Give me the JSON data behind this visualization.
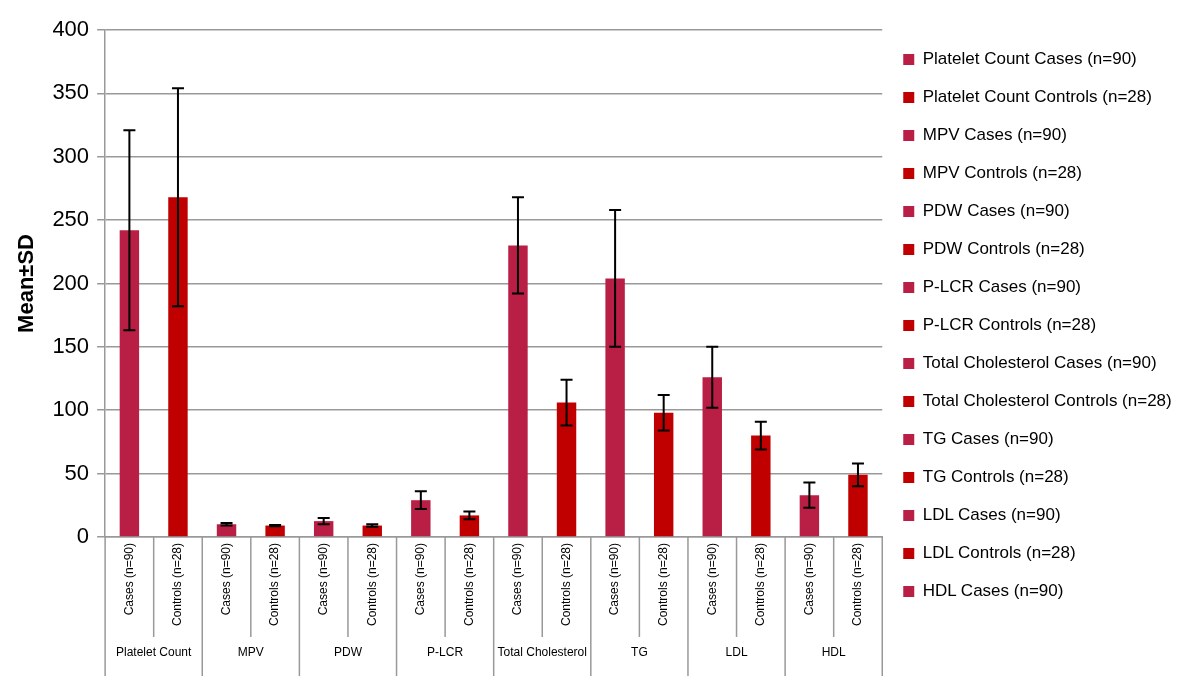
{
  "chart_data": {
    "type": "bar",
    "ylabel": "Mean±SD",
    "categories": [
      "Cases (n=90)",
      "Controls (n=28)",
      "Cases (n=90)",
      "Controls (n=28)",
      "Cases (n=90)",
      "Controls (n=28)",
      "Cases (n=90)",
      "Controls (n=28)",
      "Cases (n=90)",
      "Controls (n=28)",
      "Cases (n=90)",
      "Controls (n=28)",
      "Cases (n=90)",
      "Controls (n=28)",
      "Cases (n=90)",
      "Controls (n=28)"
    ],
    "annotations": [
      "Platelet Count",
      "MPV",
      "PDW",
      "P-LCR",
      "Total Cholesterol",
      "TG",
      "LDL",
      "HDL"
    ],
    "ylim": [
      0,
      400
    ],
    "yticks": [
      0,
      50,
      100,
      150,
      200,
      250,
      300,
      350,
      400
    ],
    "grid": "y",
    "legend": "right",
    "series": [
      {
        "name": "Platelet Count Cases (n=90)",
        "color": "#b91e45",
        "values": [
          242,
          null,
          null,
          null,
          null,
          null,
          null,
          null,
          null,
          null,
          null,
          null,
          null,
          null,
          null,
          null
        ],
        "errors": [
          79,
          null,
          null,
          null,
          null,
          null,
          null,
          null,
          null,
          null,
          null,
          null,
          null,
          null,
          null,
          null
        ]
      },
      {
        "name": "Platelet Count Controls (n=28)",
        "color": "#c00000",
        "values": [
          null,
          268,
          null,
          null,
          null,
          null,
          null,
          null,
          null,
          null,
          null,
          null,
          null,
          null,
          null,
          null
        ],
        "errors": [
          null,
          86,
          null,
          null,
          null,
          null,
          null,
          null,
          null,
          null,
          null,
          null,
          null,
          null,
          null,
          null
        ]
      },
      {
        "name": "MPV Cases (n=90)",
        "color": "#b91e45",
        "values": [
          null,
          null,
          10,
          null,
          null,
          null,
          null,
          null,
          null,
          null,
          null,
          null,
          null,
          null,
          null,
          null
        ],
        "errors": [
          null,
          null,
          1,
          null,
          null,
          null,
          null,
          null,
          null,
          null,
          null,
          null,
          null,
          null,
          null,
          null
        ]
      },
      {
        "name": "MPV Controls (n=28)",
        "color": "#c00000",
        "values": [
          null,
          null,
          null,
          9,
          null,
          null,
          null,
          null,
          null,
          null,
          null,
          null,
          null,
          null,
          null,
          null
        ],
        "errors": [
          null,
          null,
          null,
          0.5,
          null,
          null,
          null,
          null,
          null,
          null,
          null,
          null,
          null,
          null,
          null,
          null
        ]
      },
      {
        "name": "PDW Cases (n=90)",
        "color": "#b91e45",
        "values": [
          null,
          null,
          null,
          null,
          12.5,
          null,
          null,
          null,
          null,
          null,
          null,
          null,
          null,
          null,
          null,
          null
        ],
        "errors": [
          null,
          null,
          null,
          null,
          2.5,
          null,
          null,
          null,
          null,
          null,
          null,
          null,
          null,
          null,
          null,
          null
        ]
      },
      {
        "name": "PDW Controls (n=28)",
        "color": "#c00000",
        "values": [
          null,
          null,
          null,
          null,
          null,
          9,
          null,
          null,
          null,
          null,
          null,
          null,
          null,
          null,
          null,
          null
        ],
        "errors": [
          null,
          null,
          null,
          null,
          null,
          1,
          null,
          null,
          null,
          null,
          null,
          null,
          null,
          null,
          null,
          null
        ]
      },
      {
        "name": "P-LCR Cases (n=90)",
        "color": "#b91e45",
        "values": [
          null,
          null,
          null,
          null,
          null,
          null,
          29,
          null,
          null,
          null,
          null,
          null,
          null,
          null,
          null,
          null
        ],
        "errors": [
          null,
          null,
          null,
          null,
          null,
          null,
          7,
          null,
          null,
          null,
          null,
          null,
          null,
          null,
          null,
          null
        ]
      },
      {
        "name": "P-LCR Controls (n=28)",
        "color": "#c00000",
        "values": [
          null,
          null,
          null,
          null,
          null,
          null,
          null,
          17,
          null,
          null,
          null,
          null,
          null,
          null,
          null,
          null
        ],
        "errors": [
          null,
          null,
          null,
          null,
          null,
          null,
          null,
          3,
          null,
          null,
          null,
          null,
          null,
          null,
          null,
          null
        ]
      },
      {
        "name": "Total Cholesterol Cases (n=90)",
        "color": "#b91e45",
        "values": [
          null,
          null,
          null,
          null,
          null,
          null,
          null,
          null,
          230,
          null,
          null,
          null,
          null,
          null,
          null,
          null
        ],
        "errors": [
          null,
          null,
          null,
          null,
          null,
          null,
          null,
          null,
          38,
          null,
          null,
          null,
          null,
          null,
          null,
          null
        ]
      },
      {
        "name": "Total Cholesterol Controls (n=28)",
        "color": "#c00000",
        "values": [
          null,
          null,
          null,
          null,
          null,
          null,
          null,
          null,
          null,
          106,
          null,
          null,
          null,
          null,
          null,
          null
        ],
        "errors": [
          null,
          null,
          null,
          null,
          null,
          null,
          null,
          null,
          null,
          18,
          null,
          null,
          null,
          null,
          null,
          null
        ]
      },
      {
        "name": "TG Cases (n=90)",
        "color": "#b91e45",
        "values": [
          null,
          null,
          null,
          null,
          null,
          null,
          null,
          null,
          null,
          null,
          204,
          null,
          null,
          null,
          null,
          null
        ],
        "errors": [
          null,
          null,
          null,
          null,
          null,
          null,
          null,
          null,
          null,
          null,
          54,
          null,
          null,
          null,
          null,
          null
        ]
      },
      {
        "name": "TG Controls (n=28)",
        "color": "#c00000",
        "values": [
          null,
          null,
          null,
          null,
          null,
          null,
          null,
          null,
          null,
          null,
          null,
          98,
          null,
          null,
          null,
          null
        ],
        "errors": [
          null,
          null,
          null,
          null,
          null,
          null,
          null,
          null,
          null,
          null,
          null,
          14,
          null,
          null,
          null,
          null
        ]
      },
      {
        "name": "LDL Cases (n=90)",
        "color": "#b91e45",
        "values": [
          null,
          null,
          null,
          null,
          null,
          null,
          null,
          null,
          null,
          null,
          null,
          null,
          126,
          null,
          null,
          null
        ],
        "errors": [
          null,
          null,
          null,
          null,
          null,
          null,
          null,
          null,
          null,
          null,
          null,
          null,
          24,
          null,
          null,
          null
        ]
      },
      {
        "name": "LDL Controls (n=28)",
        "color": "#c00000",
        "values": [
          null,
          null,
          null,
          null,
          null,
          null,
          null,
          null,
          null,
          null,
          null,
          null,
          null,
          80,
          null,
          null
        ],
        "errors": [
          null,
          null,
          null,
          null,
          null,
          null,
          null,
          null,
          null,
          null,
          null,
          null,
          null,
          11,
          null,
          null
        ]
      },
      {
        "name": "HDL Cases (n=90)",
        "color": "#b91e45",
        "values": [
          null,
          null,
          null,
          null,
          null,
          null,
          null,
          null,
          null,
          null,
          null,
          null,
          null,
          null,
          33,
          null
        ],
        "errors": [
          null,
          null,
          null,
          null,
          null,
          null,
          null,
          null,
          null,
          null,
          null,
          null,
          null,
          null,
          10,
          null
        ]
      },
      {
        "color": "#c00000",
        "values": [
          null,
          null,
          null,
          null,
          null,
          null,
          null,
          null,
          null,
          null,
          null,
          null,
          null,
          null,
          null,
          49
        ],
        "errors": [
          null,
          null,
          null,
          null,
          null,
          null,
          null,
          null,
          null,
          null,
          null,
          null,
          null,
          null,
          null,
          9
        ]
      }
    ]
  }
}
